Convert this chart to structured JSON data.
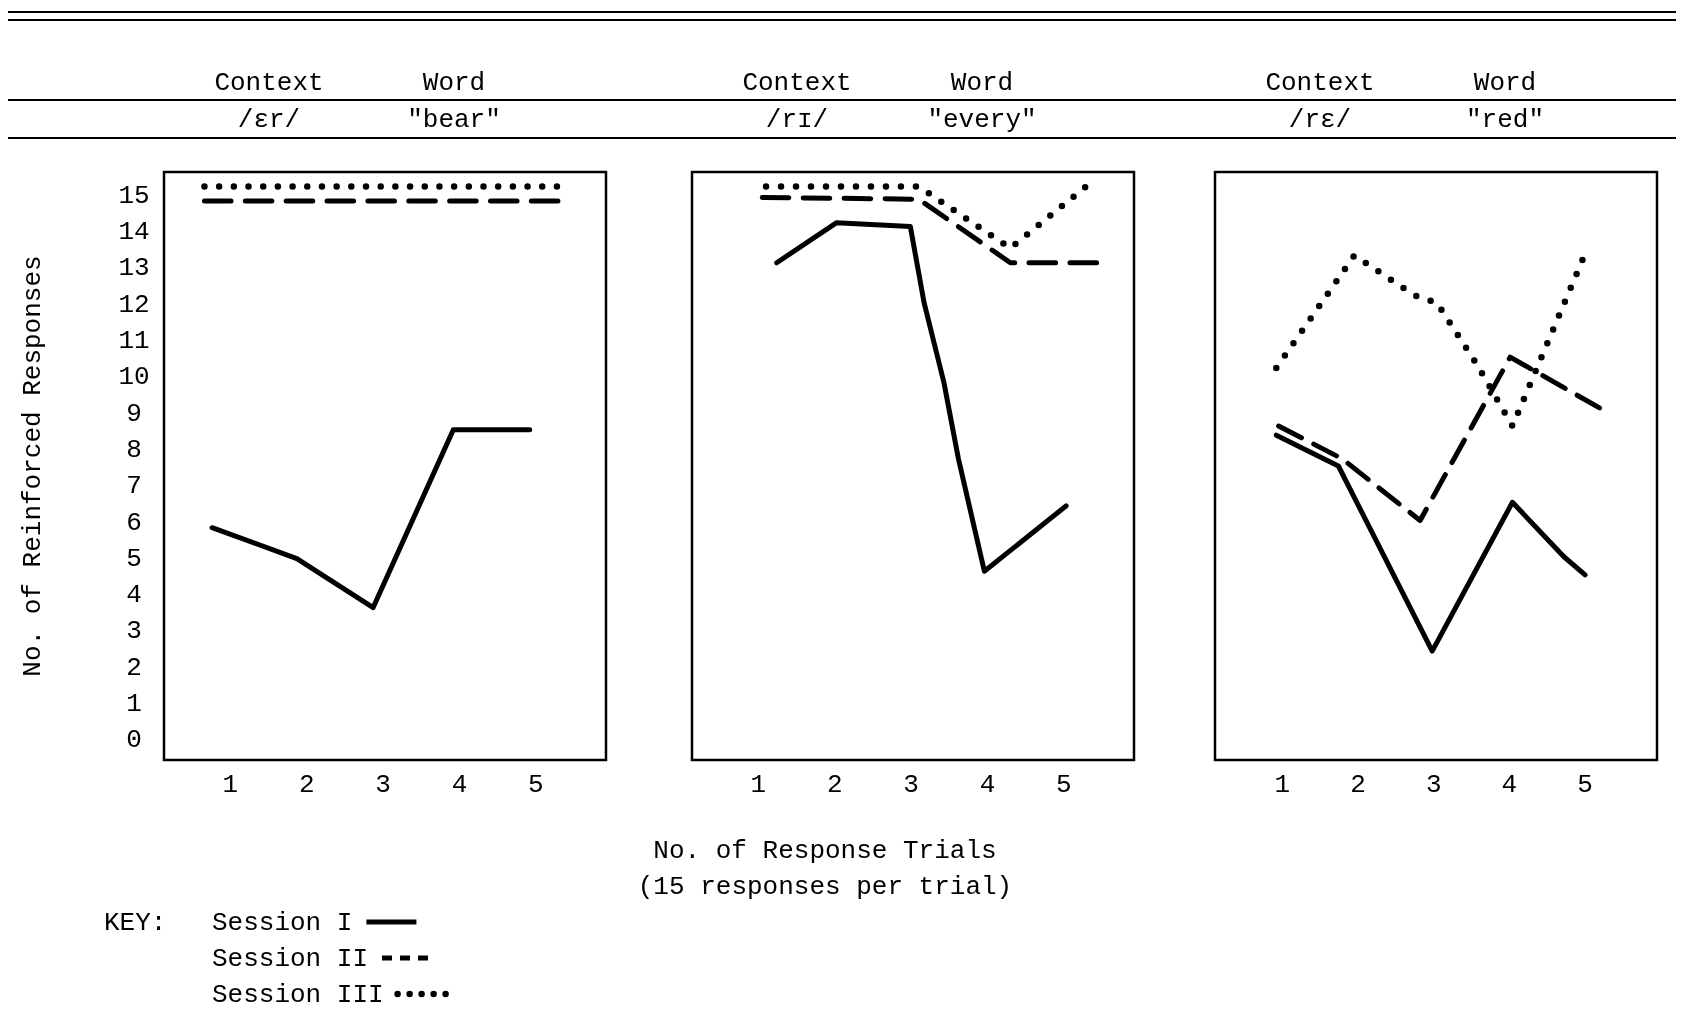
{
  "chart_data": [
    {
      "type": "line",
      "ylabel": "No. of Reinforced Responses",
      "legend_title": "KEY:",
      "legend": "bottom left",
      "annotations": [
        "Context",
        "Word",
        "/ɛr/",
        "\"bear\""
      ],
      "xlim": [
        0.13,
        5.92
      ],
      "ylim": [
        -0.6,
        15.6
      ],
      "xticks": [
        1,
        2,
        3,
        4,
        5
      ],
      "yticks": [
        0,
        1,
        2,
        3,
        4,
        5,
        6,
        7,
        8,
        9,
        10,
        11,
        12,
        13,
        14,
        15
      ],
      "grid": false,
      "series": [
        {
          "name": "Session I",
          "color": "#000000",
          "line_style": "solid",
          "x": [
            0.76,
            1.87,
            2.87,
            3.92,
            4.92
          ],
          "values": [
            5.8,
            4.95,
            3.6,
            8.5,
            8.5
          ]
        },
        {
          "name": "Session II",
          "color": "#000000",
          "line_style": "dashed",
          "x": [
            0.66,
            5.29
          ],
          "values": [
            14.8,
            14.8
          ]
        },
        {
          "name": "Session III",
          "color": "#000000",
          "line_style": "dotted",
          "x": [
            0.66,
            5.29
          ],
          "values": [
            15.2,
            15.2
          ]
        }
      ]
    },
    {
      "type": "line",
      "xlabel": "No. of Response Trials\n(15 responses per trial)",
      "annotations": [
        "Context",
        "Word",
        "/rɪ/",
        "\"every\""
      ],
      "xlim": [
        0.13,
        5.92
      ],
      "ylim": [
        -0.6,
        15.6
      ],
      "xticks": [
        1,
        2,
        3,
        4,
        5
      ],
      "tick_labels": "x",
      "grid": false,
      "series": [
        {
          "color": "#000000",
          "line_style": "solid",
          "x": [
            1.24,
            2.02,
            2.99,
            3.17,
            3.43,
            3.62,
            3.96,
            5.03
          ],
          "values": [
            13.1,
            14.2,
            14.1,
            12.0,
            9.8,
            7.7,
            4.6,
            6.4
          ]
        },
        {
          "color": "#000000",
          "line_style": "dashed",
          "x": [
            1.05,
            3.1,
            4.3,
            5.43
          ],
          "values": [
            14.9,
            14.85,
            13.1,
            13.1
          ]
        },
        {
          "color": "#000000",
          "line_style": "dotted",
          "x": [
            1.1,
            3.1,
            4.3,
            5.29
          ],
          "values": [
            15.2,
            15.2,
            13.5,
            15.2
          ]
        }
      ]
    },
    {
      "type": "line",
      "annotations": [
        "Context",
        "Word",
        "/rɛ/",
        "\"red\""
      ],
      "xlim": [
        0.11,
        5.95
      ],
      "ylim": [
        -0.6,
        15.6
      ],
      "xticks": [
        1,
        2,
        3,
        4,
        5
      ],
      "tick_labels": "x",
      "grid": false,
      "series": [
        {
          "color": "#000000",
          "line_style": "solid",
          "x": [
            0.92,
            1.74,
            2.98,
            4.04,
            4.72,
            5.0
          ],
          "values": [
            8.35,
            7.5,
            2.4,
            6.5,
            5.0,
            4.5
          ]
        },
        {
          "color": "#000000",
          "line_style": "dashed",
          "x": [
            0.95,
            1.79,
            2.82,
            4.01,
            5.19
          ],
          "values": [
            8.6,
            7.7,
            6.0,
            10.5,
            9.1
          ]
        },
        {
          "color": "#000000",
          "line_style": "dotted",
          "x": [
            0.92,
            1.95,
            2.75,
            3.04,
            3.57,
            4.04,
            4.97
          ],
          "values": [
            10.2,
            13.3,
            12.2,
            12.0,
            10.3,
            8.6,
            13.2
          ]
        }
      ]
    }
  ]
}
